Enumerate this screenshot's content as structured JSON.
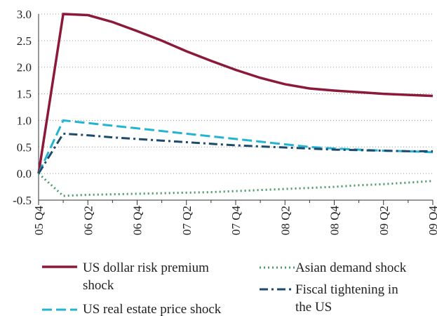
{
  "chart_data": {
    "type": "line",
    "categories": [
      "05 Q4",
      null,
      "06 Q2",
      null,
      "06 Q4",
      null,
      "07 Q2",
      null,
      "07 Q4",
      null,
      "08 Q2",
      null,
      "08 Q4",
      null,
      "09 Q2",
      null,
      "09 Q4"
    ],
    "series": [
      {
        "name": "US dollar risk premium shock",
        "color": "#8b1a3a",
        "style": "solid",
        "values": [
          0,
          3.0,
          2.98,
          2.85,
          2.68,
          2.5,
          2.3,
          2.12,
          1.95,
          1.8,
          1.68,
          1.6,
          1.56,
          1.53,
          1.5,
          1.48,
          1.46
        ]
      },
      {
        "name": "US real estate price shock",
        "color": "#22b4d2",
        "style": "dashed",
        "values": [
          0,
          1.0,
          0.95,
          0.9,
          0.85,
          0.8,
          0.75,
          0.7,
          0.65,
          0.6,
          0.55,
          0.5,
          0.47,
          0.45,
          0.43,
          0.42,
          0.4
        ]
      },
      {
        "name": "Asian demand shock",
        "color": "#4a9a6a",
        "style": "dotted",
        "values": [
          0,
          -0.42,
          -0.4,
          -0.39,
          -0.38,
          -0.37,
          -0.36,
          -0.35,
          -0.33,
          -0.31,
          -0.29,
          -0.27,
          -0.25,
          -0.22,
          -0.2,
          -0.17,
          -0.14
        ]
      },
      {
        "name": "Fiscal tightening in the US",
        "color": "#1d4a6b",
        "style": "dashdot",
        "values": [
          0,
          0.75,
          0.72,
          0.68,
          0.65,
          0.62,
          0.59,
          0.56,
          0.53,
          0.51,
          0.49,
          0.47,
          0.45,
          0.44,
          0.43,
          0.42,
          0.42
        ]
      }
    ],
    "ylim": [
      -0.5,
      3.0
    ],
    "yticks": [
      {
        "value": -0.5,
        "label": "-0.5"
      },
      {
        "value": 0,
        "label": "0.0"
      },
      {
        "value": 0.5,
        "label": "0.5"
      },
      {
        "value": 1.0,
        "label": "1.0"
      },
      {
        "value": 1.5,
        "label": "1.5"
      },
      {
        "value": 2.0,
        "label": "2.0"
      },
      {
        "value": 2.5,
        "label": "2.5"
      },
      {
        "value": 3.0,
        "label": "3.0"
      }
    ],
    "grid": true
  }
}
